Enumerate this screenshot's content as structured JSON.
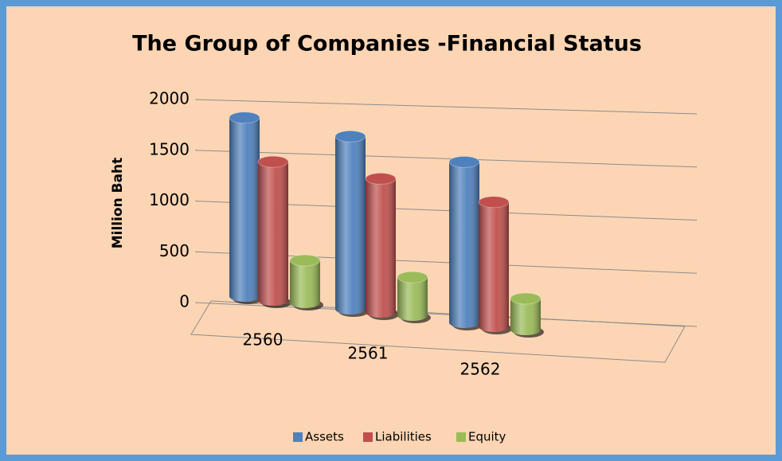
{
  "chart_data": {
    "type": "bar3d",
    "title": "The Group of Companies -Financial  Status",
    "y_label": "Million Baht",
    "categories": [
      "2560",
      "2561",
      "2562"
    ],
    "series": [
      {
        "name": "Assets",
        "color": "#4f81bd",
        "values": [
          1780,
          1720,
          1600
        ]
      },
      {
        "name": "Liabilities",
        "color": "#c0504d",
        "values": [
          1380,
          1330,
          1240
        ]
      },
      {
        "name": "Equity",
        "color": "#9bbb59",
        "values": [
          420,
          380,
          310
        ]
      }
    ],
    "ylim": [
      0,
      2000
    ],
    "yticks": [
      0,
      500,
      1000,
      1500,
      2000
    ],
    "grid": true,
    "legend": "bottom"
  }
}
